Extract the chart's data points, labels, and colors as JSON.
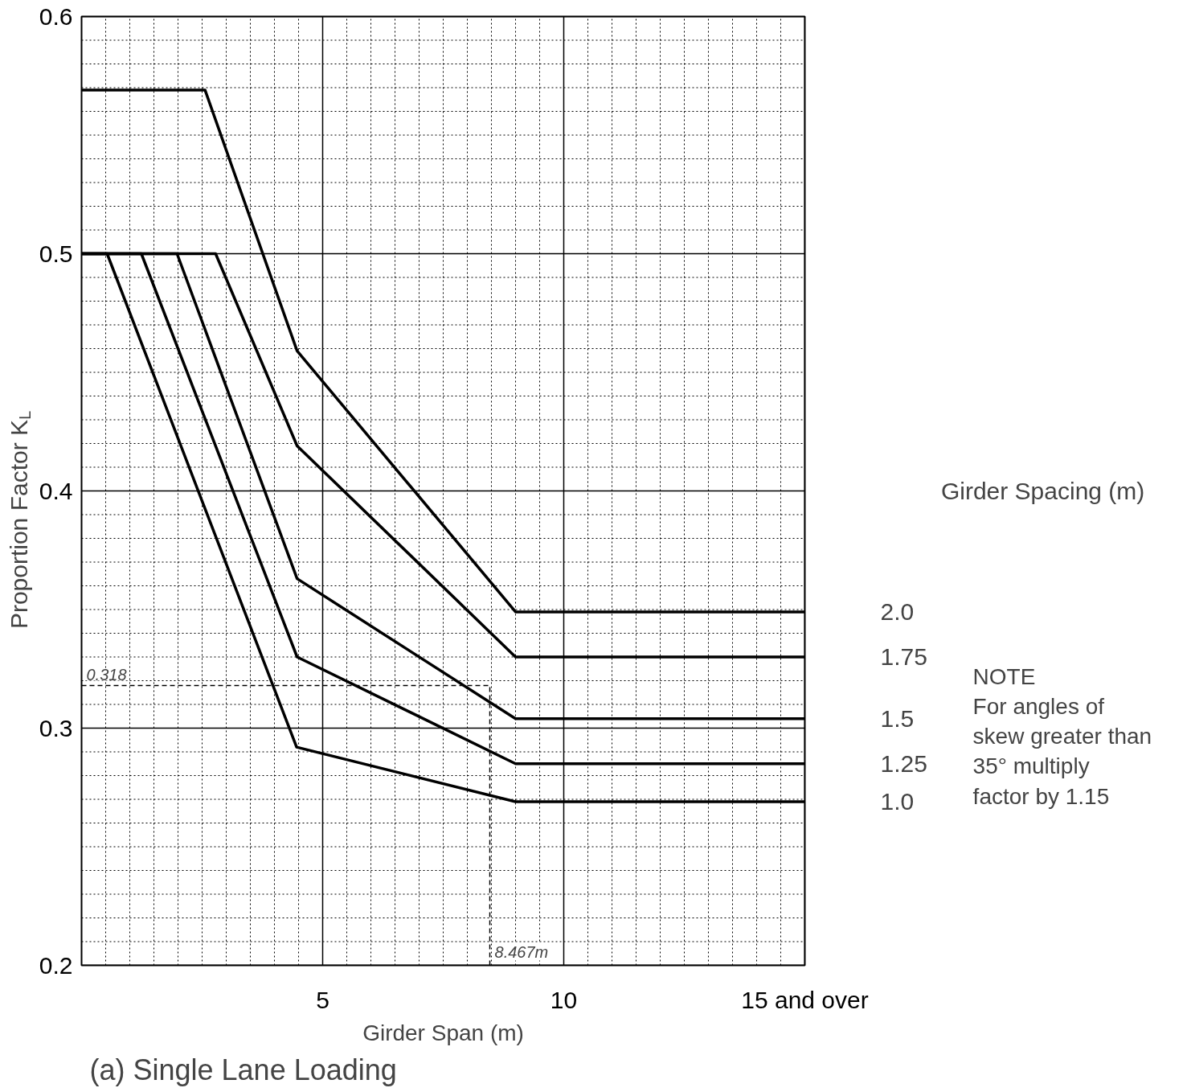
{
  "chart_data": {
    "type": "line",
    "title": "(a) Single Lane Loading",
    "xlabel": "Girder Span (m)",
    "ylabel": "Proportion Factor K$_{L}$",
    "legend_title": "Girder Spacing (m)",
    "annotations": [
      "NOTE\nFor angles of\nskew greater than\n35° multiply\nfactor by 1.15",
      {
        "text": "0.318",
        "x": 0,
        "y": 0.318
      },
      {
        "text": "8.467m",
        "x": 8.467,
        "y": 0.2
      }
    ],
    "xlim": [
      0,
      15
    ],
    "ylim": [
      0.2,
      0.6
    ],
    "xticks": [
      {
        "value": 0.5,
        "label": null
      },
      {
        "value": 1,
        "label": null
      },
      {
        "value": 1.5,
        "label": null
      },
      {
        "value": 2,
        "label": null
      },
      {
        "value": 2.5,
        "label": null
      },
      {
        "value": 3,
        "label": null
      },
      {
        "value": 3.5,
        "label": null
      },
      {
        "value": 4,
        "label": null
      },
      {
        "value": 4.5,
        "label": null
      },
      5,
      {
        "value": 5.5,
        "label": null
      },
      {
        "value": 6,
        "label": null
      },
      {
        "value": 6.5,
        "label": null
      },
      {
        "value": 7,
        "label": null
      },
      {
        "value": 7.5,
        "label": null
      },
      {
        "value": 8,
        "label": null
      },
      {
        "value": 8.5,
        "label": null
      },
      {
        "value": 9,
        "label": null
      },
      {
        "value": 9.5,
        "label": null
      },
      10,
      {
        "value": 10.5,
        "label": null
      },
      {
        "value": 11,
        "label": null
      },
      {
        "value": 11.5,
        "label": null
      },
      {
        "value": 12,
        "label": null
      },
      {
        "value": 12.5,
        "label": null
      },
      {
        "value": 13,
        "label": null
      },
      {
        "value": 13.5,
        "label": null
      },
      {
        "value": 14,
        "label": null
      },
      {
        "value": 14.5,
        "label": null
      },
      {
        "value": 15,
        "label": "15 and over"
      }
    ],
    "yticks": [
      0.2,
      {
        "value": 0.21,
        "label": null
      },
      {
        "value": 0.22,
        "label": null
      },
      {
        "value": 0.23,
        "label": null
      },
      {
        "value": 0.24,
        "label": null
      },
      {
        "value": 0.25,
        "label": null
      },
      {
        "value": 0.26,
        "label": null
      },
      {
        "value": 0.27,
        "label": null
      },
      {
        "value": 0.28,
        "label": null
      },
      {
        "value": 0.29,
        "label": null
      },
      0.3,
      {
        "value": 0.31,
        "label": null
      },
      {
        "value": 0.32,
        "label": null
      },
      {
        "value": 0.33,
        "label": null
      },
      {
        "value": 0.34,
        "label": null
      },
      {
        "value": 0.35,
        "label": null
      },
      {
        "value": 0.36,
        "label": null
      },
      {
        "value": 0.37,
        "label": null
      },
      {
        "value": 0.38,
        "label": null
      },
      {
        "value": 0.39,
        "label": null
      },
      0.4,
      {
        "value": 0.41,
        "label": null
      },
      {
        "value": 0.42,
        "label": null
      },
      {
        "value": 0.43,
        "label": null
      },
      {
        "value": 0.44,
        "label": null
      },
      {
        "value": 0.45,
        "label": null
      },
      {
        "value": 0.46,
        "label": null
      },
      {
        "value": 0.47,
        "label": null
      },
      {
        "value": 0.48,
        "label": null
      },
      {
        "value": 0.49,
        "label": null
      },
      0.5,
      {
        "value": 0.51,
        "label": null
      },
      {
        "value": 0.52,
        "label": null
      },
      {
        "value": 0.53,
        "label": null
      },
      {
        "value": 0.54,
        "label": null
      },
      {
        "value": 0.55,
        "label": null
      },
      {
        "value": 0.56,
        "label": null
      },
      {
        "value": 0.57,
        "label": null
      },
      {
        "value": 0.58,
        "label": null
      },
      {
        "value": 0.59,
        "label": null
      },
      0.6
    ],
    "grid": true,
    "line_style": "solid",
    "marker": "none",
    "series": [
      {
        "name": "2.0",
        "color": "#000000",
        "x": [
          0,
          2.56,
          4.47,
          9.0,
          15
        ],
        "values": [
          0.569,
          0.569,
          0.459,
          0.349,
          0.349
        ]
      },
      {
        "name": "1.75",
        "color": "#000000",
        "x": [
          0,
          2.78,
          4.47,
          9.0,
          15
        ],
        "values": [
          0.5,
          0.5,
          0.419,
          0.33,
          0.33
        ]
      },
      {
        "name": "1.5",
        "color": "#000000",
        "x": [
          0,
          1.98,
          4.47,
          9.0,
          15
        ],
        "values": [
          0.5,
          0.5,
          0.363,
          0.304,
          0.304
        ]
      },
      {
        "name": "1.25",
        "color": "#000000",
        "x": [
          0,
          1.24,
          4.47,
          9.0,
          15
        ],
        "values": [
          0.5,
          0.5,
          0.33,
          0.285,
          0.285
        ]
      },
      {
        "name": "1.0",
        "color": "#000000",
        "x": [
          0,
          0.53,
          4.46,
          9.0,
          15
        ],
        "values": [
          0.5,
          0.5,
          0.292,
          0.269,
          0.269
        ]
      },
      {
        "color": "#000000",
        "line_style": "dashed",
        "x": [
          0,
          8.467,
          8.467
        ],
        "values": [
          0.318,
          0.318,
          0.2
        ]
      }
    ]
  }
}
